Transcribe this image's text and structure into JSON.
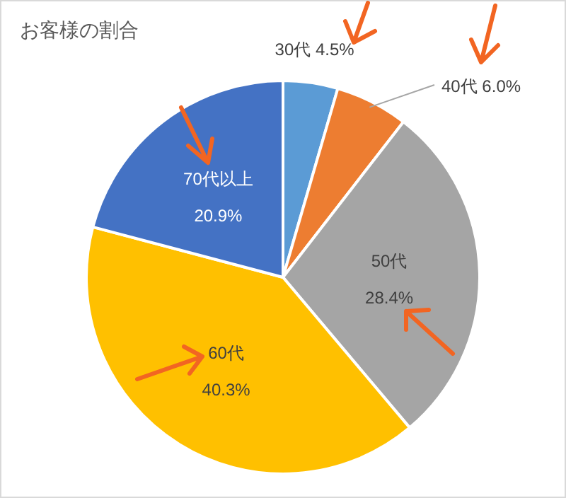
{
  "chart_data": {
    "type": "pie",
    "title": "お客様の割合",
    "categories": [
      "30代",
      "40代",
      "50代",
      "60代",
      "70代以上"
    ],
    "values": [
      4.5,
      6.0,
      28.4,
      40.3,
      20.9
    ],
    "value_labels": [
      "4.5%",
      "6.0%",
      "28.4%",
      "40.3%",
      "20.9%"
    ],
    "colors": [
      "#5b9bd5",
      "#ed7d31",
      "#a5a5a5",
      "#ffc000",
      "#4472c4"
    ]
  }
}
